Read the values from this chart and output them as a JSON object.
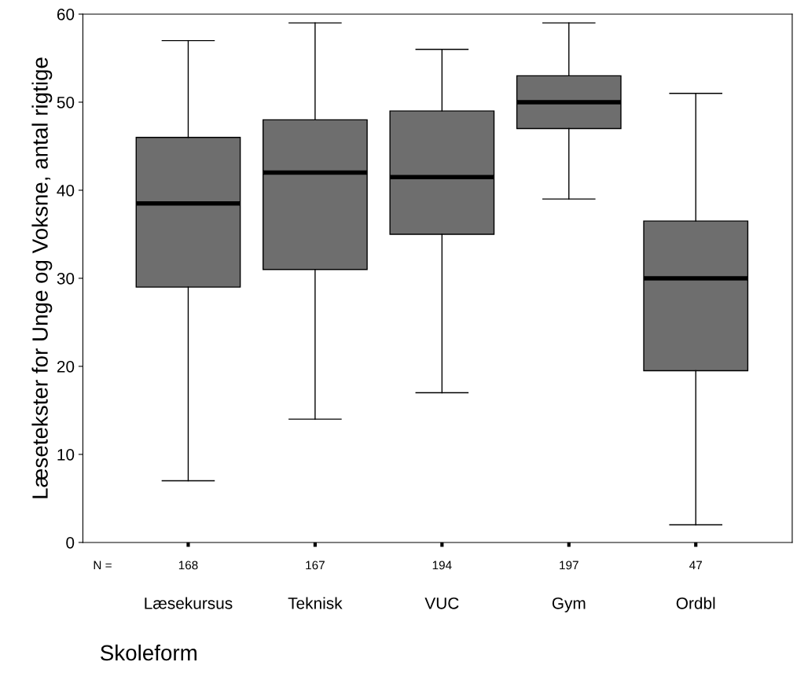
{
  "chart_data": {
    "type": "box",
    "xlabel": "Skoleform",
    "ylabel": "Læsetekster for Unge og Voksne, antal rigtige",
    "categories": [
      "Læsekursus",
      "Teknisk",
      "VUC",
      "Gym",
      "Ordbl"
    ],
    "color": "#6e6e6e",
    "boxes": [
      {
        "low": 7,
        "q1": 29,
        "median": 38.5,
        "q3": 46,
        "high": 57
      },
      {
        "low": 14,
        "q1": 31,
        "median": 42,
        "q3": 48,
        "high": 59
      },
      {
        "low": 17,
        "q1": 35,
        "median": 41.5,
        "q3": 49,
        "high": 56
      },
      {
        "low": 39,
        "q1": 47,
        "median": 50,
        "q3": 53,
        "high": 59
      },
      {
        "low": 2,
        "q1": 19.5,
        "median": 30,
        "q3": 36.5,
        "high": 51
      }
    ],
    "annotations": [
      "N =",
      "168",
      "167",
      "194",
      "197",
      "47"
    ],
    "ylim": [
      0,
      60
    ],
    "yticks": [
      0,
      10,
      20,
      30,
      40,
      50,
      60
    ],
    "grid": false,
    "legend": false
  }
}
